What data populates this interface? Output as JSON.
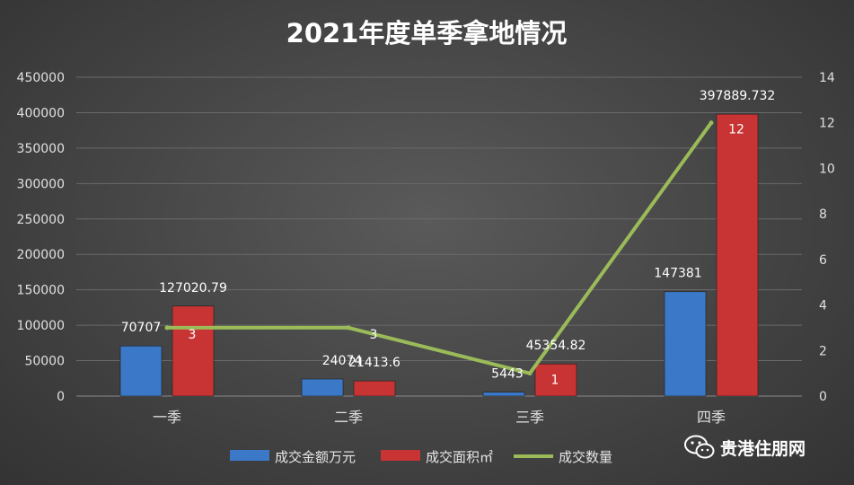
{
  "chart_data": {
    "type": "bar+line",
    "title": "2021年度单季拿地情况",
    "categories": [
      "一季",
      "二季",
      "三季",
      "四季"
    ],
    "series": [
      {
        "name": "成交金额万元",
        "type": "bar",
        "axis": "left",
        "color": "#3b78c8",
        "values": [
          70707,
          24074,
          5443,
          147381
        ],
        "labels": [
          "70707",
          "24074",
          "5443",
          "147381"
        ]
      },
      {
        "name": "成交面积㎡",
        "type": "bar",
        "axis": "left",
        "color": "#c83434",
        "values": [
          127020.79,
          21413.6,
          45354.82,
          397889.732
        ],
        "labels": [
          "127020.79",
          "21413.6",
          "45354.82",
          "397889.732"
        ]
      },
      {
        "name": "成交数量",
        "type": "line",
        "axis": "right",
        "color": "#9bbb59",
        "values": [
          3,
          3,
          1,
          12
        ],
        "labels": [
          "3",
          "3",
          "1",
          "12"
        ]
      }
    ],
    "y_left": {
      "min": 0,
      "max": 450000,
      "ticks": [
        "0",
        "50000",
        "100000",
        "150000",
        "200000",
        "250000",
        "300000",
        "350000",
        "400000",
        "450000"
      ]
    },
    "y_right": {
      "min": 0,
      "max": 14,
      "ticks": [
        "0",
        "2",
        "4",
        "6",
        "8",
        "10",
        "12",
        "14"
      ]
    },
    "legend": "bottom",
    "grid": true
  },
  "watermark": {
    "text": "贵港住朋网",
    "icon": "wechat-icon"
  }
}
